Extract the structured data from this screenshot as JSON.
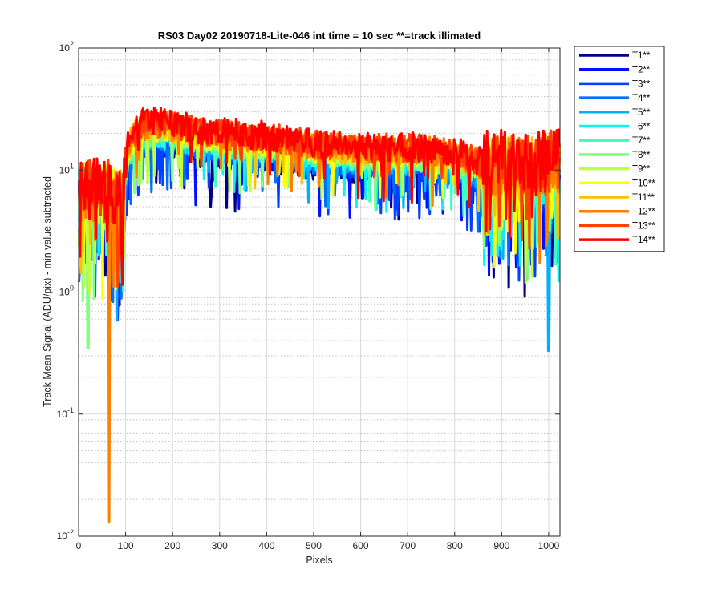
{
  "chart_data": {
    "type": "line",
    "title": "RS03 Day02 20190718-Lite-046 int time = 10 sec    **=track illimated",
    "xlabel": "Pixels",
    "ylabel": "Track Mean Signal (ADU/pix) - min value subtracted",
    "xlim": [
      0,
      1024
    ],
    "ylim": [
      0.01,
      100
    ],
    "yscale": "log",
    "grid": true,
    "legend_position": "outside-right",
    "x_ticks": [
      "0",
      "100",
      "200",
      "300",
      "400",
      "500",
      "600",
      "700",
      "800",
      "900",
      "1000"
    ],
    "y_ticks": [
      {
        "base": "10",
        "exp": "-2"
      },
      {
        "base": "10",
        "exp": "-1"
      },
      {
        "base": "10",
        "exp": "0"
      },
      {
        "base": "10",
        "exp": "1"
      },
      {
        "base": "10",
        "exp": "2"
      }
    ],
    "envelope": {
      "x": [
        0,
        50,
        95,
        105,
        130,
        160,
        200,
        250,
        300,
        400,
        500,
        600,
        700,
        800,
        850,
        900,
        950,
        1000,
        1024
      ],
      "y": [
        6,
        6,
        5,
        14,
        20,
        21,
        20,
        18,
        17,
        16,
        14,
        13,
        13,
        12,
        10,
        10,
        9,
        10,
        10
      ]
    },
    "annotated_minima": [
      {
        "x": 65,
        "y": 0.013,
        "series": "T12**"
      },
      {
        "x": 1000,
        "y": 0.33,
        "series": "T5**"
      },
      {
        "x": 20,
        "y": 0.35,
        "series": "T8**"
      }
    ],
    "series": [
      {
        "name": "T1**",
        "color": "#00008f"
      },
      {
        "name": "T2**",
        "color": "#0010ff"
      },
      {
        "name": "T3**",
        "color": "#0040ff"
      },
      {
        "name": "T4**",
        "color": "#0070ff"
      },
      {
        "name": "T5**",
        "color": "#00b0ff"
      },
      {
        "name": "T6**",
        "color": "#10f0f0"
      },
      {
        "name": "T7**",
        "color": "#40ffc0"
      },
      {
        "name": "T8**",
        "color": "#80ff80"
      },
      {
        "name": "T9**",
        "color": "#c0ff40"
      },
      {
        "name": "T10**",
        "color": "#ffff00"
      },
      {
        "name": "T11**",
        "color": "#ffc000"
      },
      {
        "name": "T12**",
        "color": "#ff8000"
      },
      {
        "name": "T13**",
        "color": "#ff4000"
      },
      {
        "name": "T14**",
        "color": "#ff0000"
      }
    ]
  }
}
